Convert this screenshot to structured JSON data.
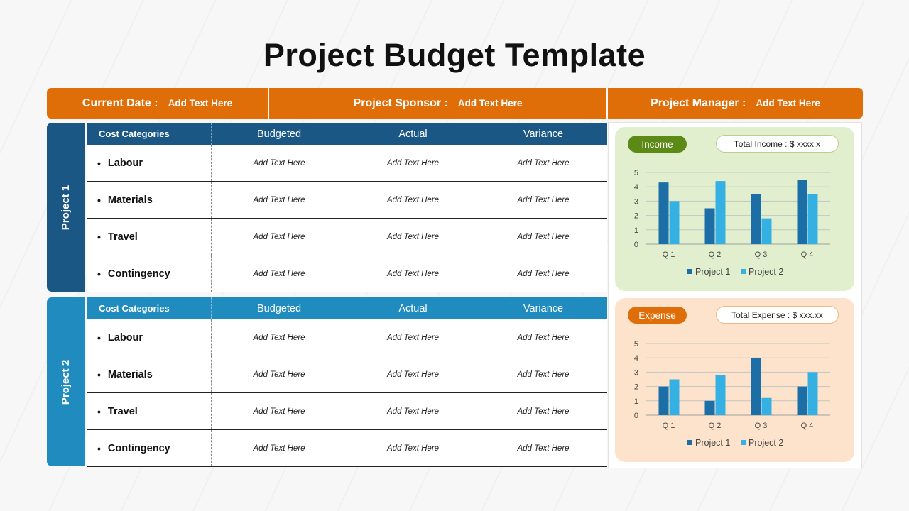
{
  "title": "Project Budget Template",
  "header": {
    "date_label": "Current Date :",
    "date_value": "Add Text Here",
    "sponsor_label": "Project Sponsor :",
    "sponsor_value": "Add Text Here",
    "manager_label": "Project Manager :",
    "manager_value": "Add Text Here"
  },
  "colors": {
    "orange": "#e06e08",
    "project1_blue": "#1a5785",
    "project2_blue": "#1f8bbf",
    "bar_project1": "#1c6ea6",
    "bar_project2": "#35b0e2",
    "income_bg": "#e2efcf",
    "expense_bg": "#fde3cb"
  },
  "projects": [
    {
      "name": "Project 1",
      "columns": [
        "Cost Categories",
        "Budgeted",
        "Actual",
        "Variance"
      ],
      "rows": [
        {
          "category": "Labour",
          "budgeted": "Add Text Here",
          "actual": "Add Text Here",
          "variance": "Add Text Here"
        },
        {
          "category": "Materials",
          "budgeted": "Add Text Here",
          "actual": "Add Text Here",
          "variance": "Add Text Here"
        },
        {
          "category": "Travel",
          "budgeted": "Add Text Here",
          "actual": "Add Text Here",
          "variance": "Add Text Here"
        },
        {
          "category": "Contingency",
          "budgeted": "Add Text Here",
          "actual": "Add Text Here",
          "variance": "Add Text Here"
        }
      ]
    },
    {
      "name": "Project 2",
      "columns": [
        "Cost Categories",
        "Budgeted",
        "Actual",
        "Variance"
      ],
      "rows": [
        {
          "category": "Labour",
          "budgeted": "Add Text Here",
          "actual": "Add Text Here",
          "variance": "Add Text Here"
        },
        {
          "category": "Materials",
          "budgeted": "Add Text Here",
          "actual": "Add Text Here",
          "variance": "Add Text Here"
        },
        {
          "category": "Travel",
          "budgeted": "Add Text Here",
          "actual": "Add Text Here",
          "variance": "Add Text Here"
        },
        {
          "category": "Contingency",
          "budgeted": "Add Text Here",
          "actual": "Add Text Here",
          "variance": "Add Text Here"
        }
      ]
    }
  ],
  "income": {
    "label": "Income",
    "total": "Total Income : $ xxxx.x"
  },
  "expense": {
    "label": "Expense",
    "total": "Total Expense : $ xxx.xx"
  },
  "chart_data": [
    {
      "type": "bar",
      "title": "",
      "categories": [
        "Q 1",
        "Q 2",
        "Q 3",
        "Q 4"
      ],
      "series": [
        {
          "name": "Project 1",
          "values": [
            4.3,
            2.5,
            3.5,
            4.5
          ]
        },
        {
          "name": "Project 2",
          "values": [
            3.0,
            4.4,
            1.8,
            3.5
          ]
        }
      ],
      "ylim": [
        0,
        5
      ],
      "yticks": [
        "0",
        "1",
        "2",
        "3",
        "4",
        "5"
      ],
      "grid": true,
      "legend": "bottom"
    },
    {
      "type": "bar",
      "title": "",
      "categories": [
        "Q 1",
        "Q 2",
        "Q 3",
        "Q 4"
      ],
      "series": [
        {
          "name": "Project 1",
          "values": [
            2.0,
            1.0,
            4.0,
            2.0
          ]
        },
        {
          "name": "Project 2",
          "values": [
            2.5,
            2.8,
            1.2,
            3.0
          ]
        }
      ],
      "ylim": [
        0,
        5
      ],
      "yticks": [
        "0",
        "1",
        "2",
        "3",
        "4",
        "5"
      ],
      "grid": true,
      "legend": "bottom"
    }
  ]
}
